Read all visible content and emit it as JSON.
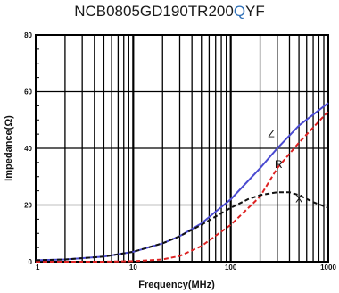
{
  "title": {
    "part_prefix": "NCB0805GD190TR200",
    "part_highlight": "Q",
    "part_suffix": "YF"
  },
  "chart_data": {
    "type": "line",
    "xlabel": "Frequency(MHz)",
    "ylabel": "Impedance(Ω)",
    "xscale": "log",
    "xlim": [
      1,
      1000
    ],
    "ylim": [
      0,
      80
    ],
    "xticks": [
      "1",
      "10",
      "100",
      "1000"
    ],
    "yticks": [
      "0",
      "20",
      "40",
      "60",
      "80"
    ],
    "grid": true,
    "series": [
      {
        "name": "Z",
        "color": "#4a4ad0",
        "dash": "solid",
        "x": [
          1,
          2,
          5,
          10,
          20,
          30,
          50,
          100,
          200,
          300,
          500,
          1000
        ],
        "y": [
          0.5,
          0.8,
          1.8,
          3.5,
          6.5,
          9,
          13.5,
          22,
          33,
          40,
          48,
          56
        ]
      },
      {
        "name": "R",
        "color": "#dd2222",
        "dash": "dashed",
        "x": [
          1,
          5,
          10,
          20,
          30,
          50,
          100,
          200,
          300,
          500,
          1000
        ],
        "y": [
          0,
          0,
          0.2,
          0.8,
          2,
          5.5,
          13,
          23,
          33,
          42,
          53
        ]
      },
      {
        "name": "X",
        "color": "#111111",
        "dash": "dashed",
        "x": [
          1,
          2,
          5,
          10,
          20,
          30,
          50,
          100,
          150,
          200,
          300,
          400,
          500,
          700,
          1000
        ],
        "y": [
          0.5,
          0.8,
          1.8,
          3.5,
          6.5,
          9,
          13,
          19,
          22,
          23.5,
          24.5,
          24.5,
          23.5,
          21,
          19
        ]
      }
    ]
  }
}
